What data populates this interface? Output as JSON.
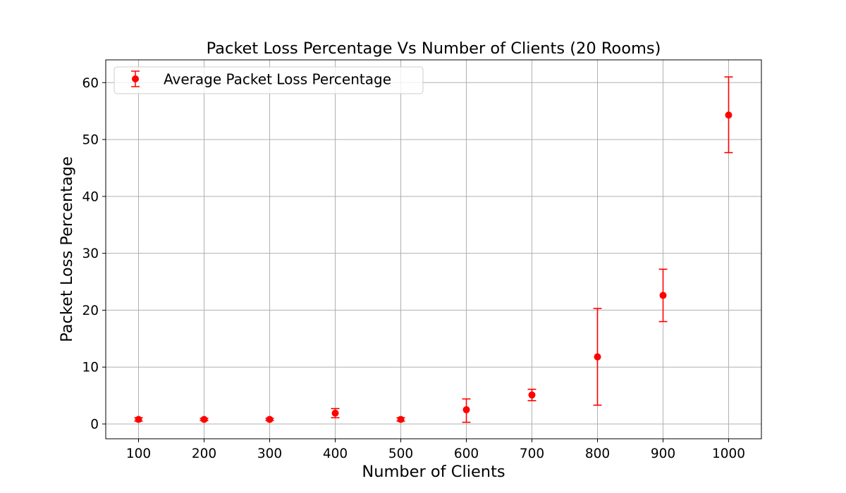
{
  "chart_data": {
    "type": "scatter",
    "title": "Packet Loss Percentage Vs Number of Clients (20 Rooms)",
    "xlabel": "Number of Clients",
    "ylabel": "Packet Loss Percentage",
    "x_ticks": [
      "100",
      "200",
      "300",
      "400",
      "500",
      "600",
      "700",
      "800",
      "900",
      "1000"
    ],
    "y_ticks": [
      "0",
      "10",
      "20",
      "30",
      "40",
      "50",
      "60"
    ],
    "xlim": [
      50,
      1050
    ],
    "ylim": [
      -2.6,
      64
    ],
    "grid": true,
    "legend_placement": "top-left",
    "color": "#ff0000",
    "series": [
      {
        "name": "Average Packet Loss Percentage",
        "x": [
          100,
          200,
          300,
          400,
          500,
          600,
          700,
          800,
          900,
          1000
        ],
        "y": [
          0.8,
          0.8,
          0.8,
          1.9,
          0.8,
          2.5,
          5.1,
          11.8,
          22.6,
          54.3
        ],
        "err_low": [
          0.5,
          0.6,
          0.6,
          1.1,
          0.5,
          0.3,
          4.1,
          3.3,
          18.0,
          47.7
        ],
        "err_high": [
          1.1,
          1.0,
          1.0,
          2.7,
          1.1,
          4.4,
          6.1,
          20.3,
          27.2,
          61.0
        ]
      }
    ]
  }
}
